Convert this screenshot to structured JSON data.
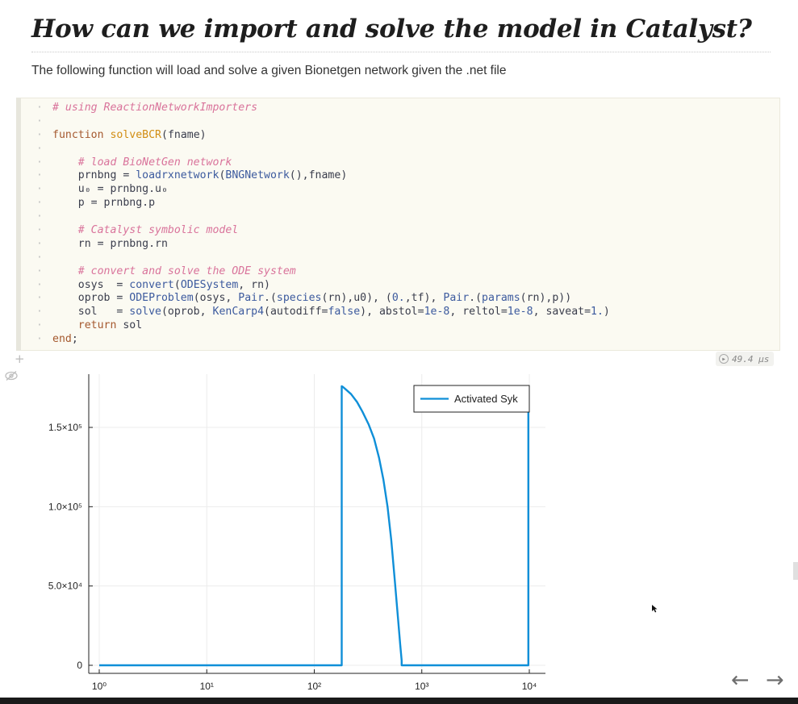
{
  "heading": "How can we import and solve the model in Catalyst?",
  "intro": "The following function will load and solve a given Bionetgen network given the .net file",
  "code_lines": [
    "# using ReactionNetworkImporters",
    "",
    "function solveBCR(fname)",
    "",
    "    # load BioNetGen network",
    "    prnbng = loadrxnetwork(BNGNetwork(),fname)",
    "    u₀ = prnbng.u₀",
    "    p = prnbng.p",
    "",
    "    # Catalyst symbolic model",
    "    rn = prnbng.rn",
    "",
    "    # convert and solve the ODE system",
    "    osys  = convert(ODESystem, rn)",
    "    oprob = ODEProblem(osys, Pair.(species(rn),u0), (0.,tf), Pair.(params(rn),p))",
    "    sol   = solve(oprob, KenCarp4(autodiff=false), abstol=1e-8, reltol=1e-8, saveat=1.)",
    "    return sol",
    "end;"
  ],
  "runtime": "49.4 μs",
  "icons": {
    "add_cell": "plus-icon",
    "run": "play-circle-icon",
    "hide": "eye-slash-icon",
    "prev": "arrow-left-icon",
    "next": "arrow-right-icon"
  },
  "navigation": {
    "prev": "←",
    "next": "→"
  },
  "colors": {
    "series": "#0f8fd8",
    "comment": "#d9739b",
    "keyword": "#a5592f"
  },
  "chart_data": {
    "type": "line",
    "xscale": "log",
    "yscale": "linear",
    "xlim": [
      1,
      10000
    ],
    "ylim": [
      -3000,
      180000
    ],
    "grid": true,
    "legend_position": "top-right",
    "x_tick_labels": [
      "10⁰",
      "10¹",
      "10²",
      "10³",
      "10⁴"
    ],
    "x_ticks": [
      1,
      10,
      100,
      1000,
      10000
    ],
    "y_tick_labels": [
      "0",
      "5.0×10⁴",
      "1.0×10⁵",
      "1.5×10⁵"
    ],
    "y_ticks": [
      0,
      50000,
      100000,
      150000
    ],
    "series": [
      {
        "name": "Activated Syk",
        "x": [
          1,
          180,
          180,
          185,
          200,
          220,
          250,
          280,
          320,
          360,
          400,
          440,
          480,
          520,
          560,
          600,
          630,
          650,
          650,
          9800,
          9800
        ],
        "y": [
          0,
          0,
          176000,
          175500,
          173500,
          171000,
          166000,
          160000,
          152000,
          143000,
          131000,
          117000,
          100000,
          79000,
          54000,
          30000,
          13000,
          3000,
          0,
          0,
          160000
        ]
      }
    ]
  }
}
